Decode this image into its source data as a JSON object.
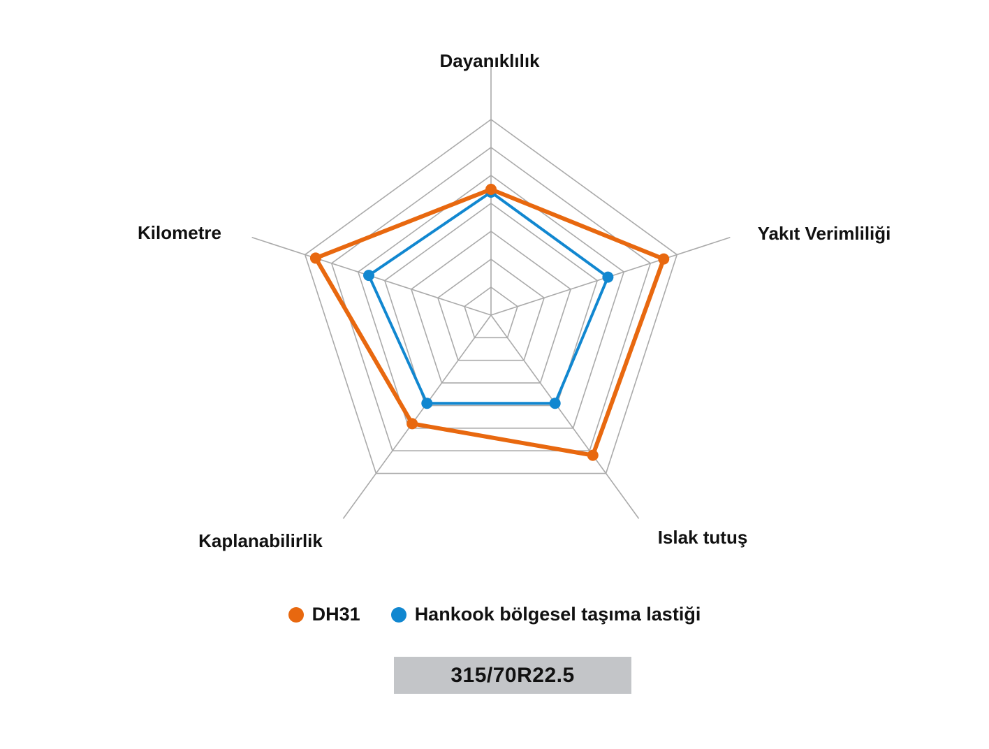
{
  "chart_data": {
    "type": "radar",
    "axes": [
      "Dayanıklılık",
      "Yakıt Verimliliği",
      "Islak tutuş",
      "Kaplanabilirlik",
      "Kilometre"
    ],
    "scale": {
      "min": 0,
      "max": 7,
      "rings": 7
    },
    "series": [
      {
        "name": "DH31",
        "color": "#e8680f",
        "values": [
          4.5,
          6.5,
          6.2,
          4.8,
          6.6
        ]
      },
      {
        "name": "Hankook bölgesel taşıma lastiği",
        "color": "#1187d0",
        "values": [
          4.4,
          4.4,
          3.9,
          3.9,
          4.6
        ]
      }
    ],
    "grid_color": "#aaaaaa"
  },
  "size_label": "315/70R22.5"
}
